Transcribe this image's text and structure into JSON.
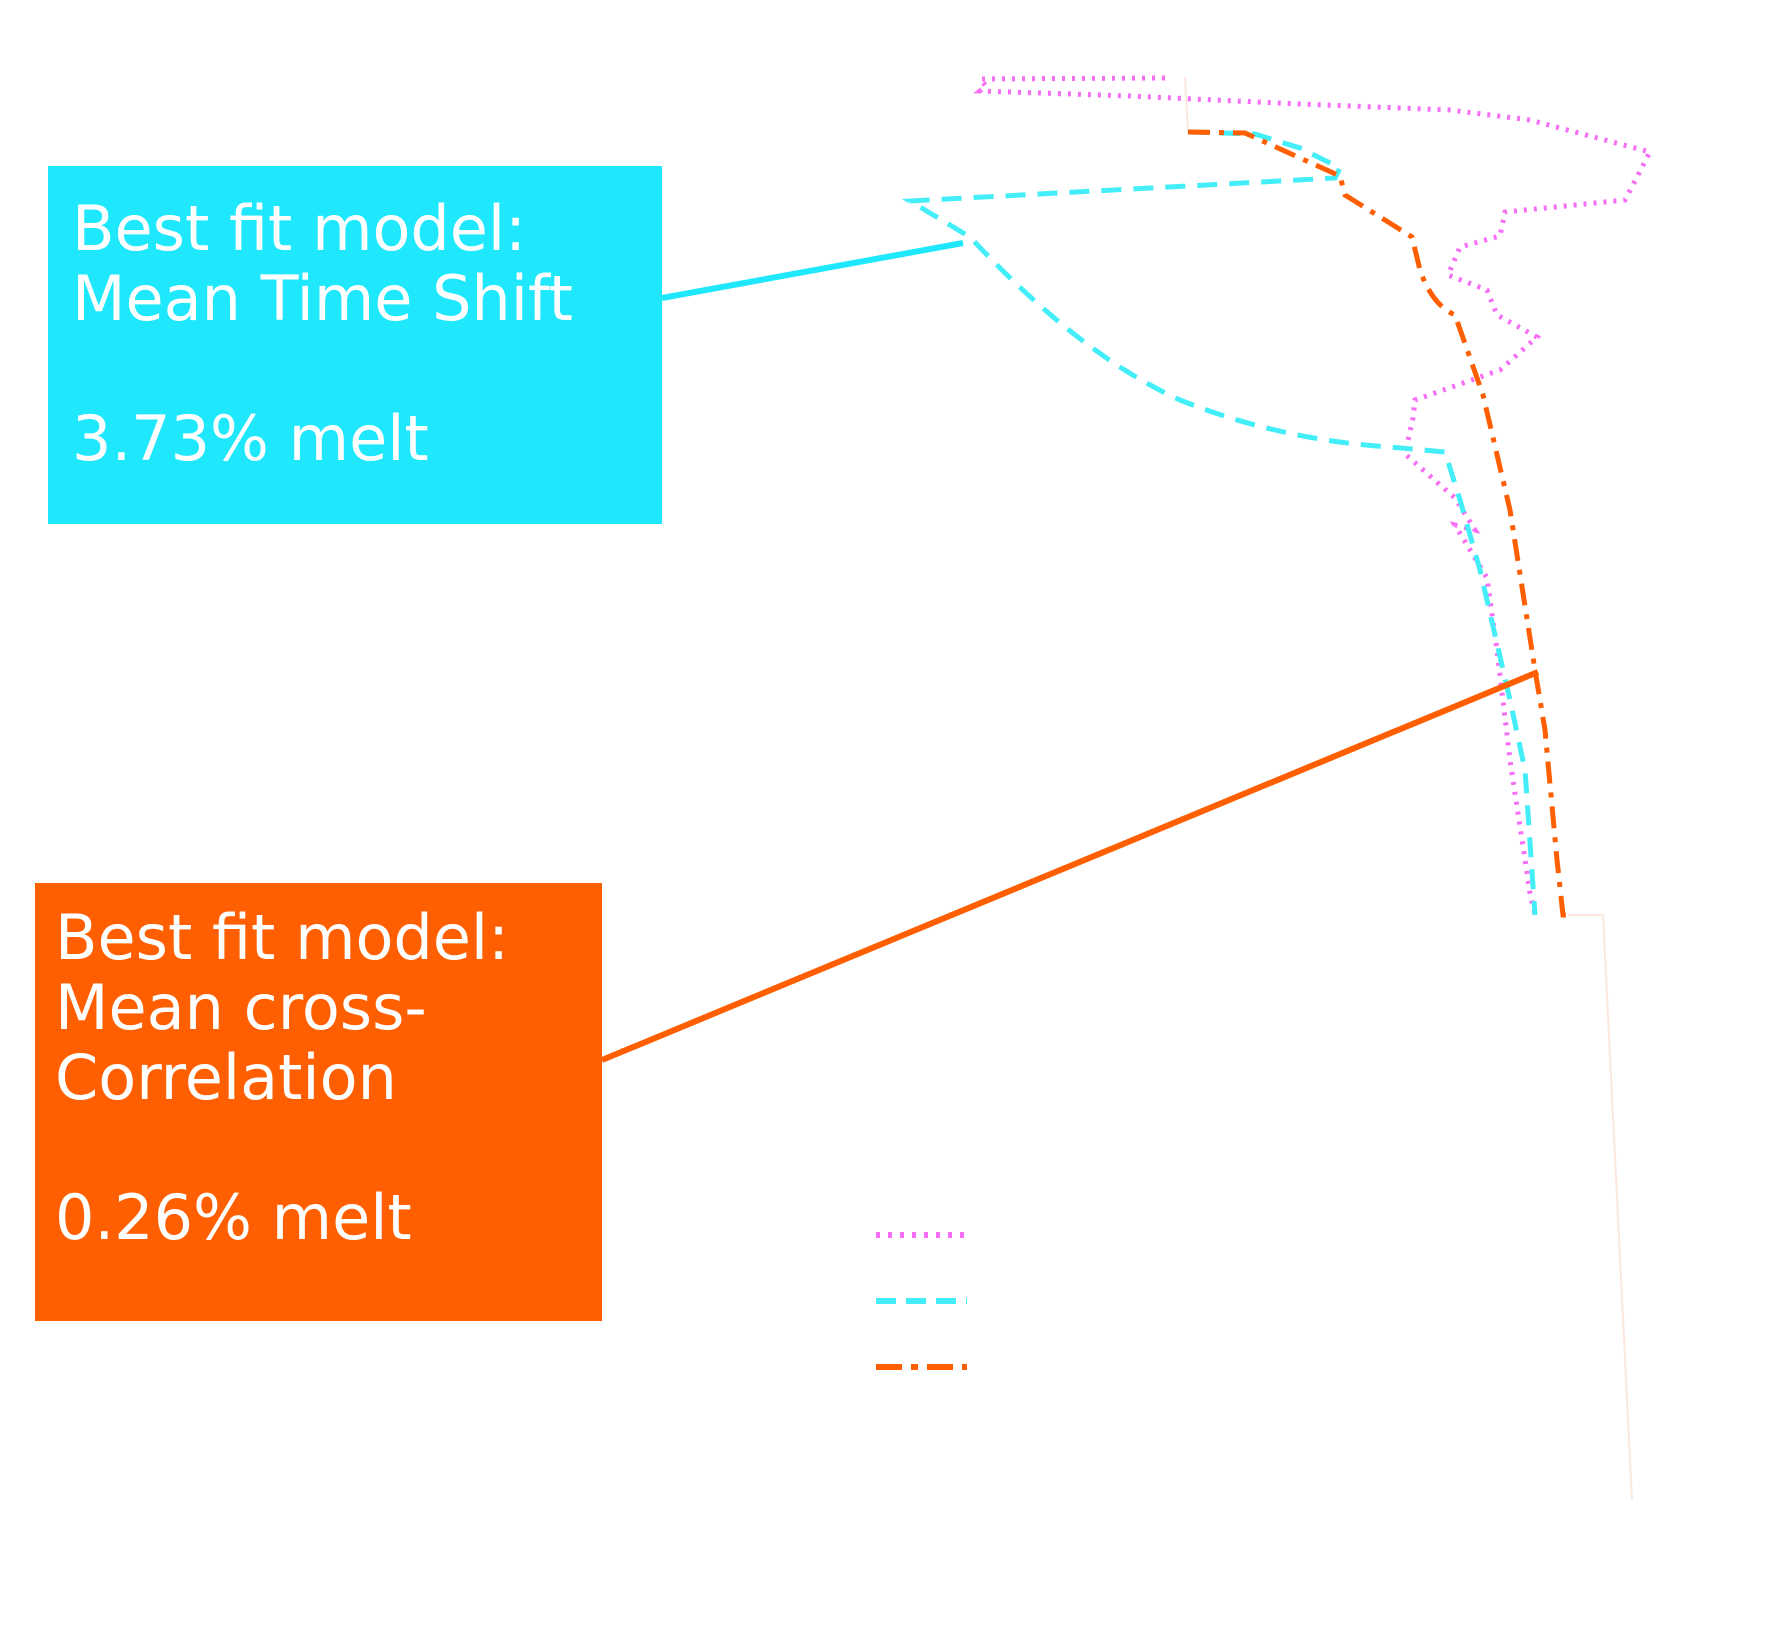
{
  "colors": {
    "background": "#ffffff",
    "magenta": "#f66ef6",
    "cyan": "#44eef8",
    "cyan_box": "#1fe8fc",
    "orange": "#ff5f00"
  },
  "annotations": {
    "cyan": {
      "title_line1": "Best fit model:",
      "title_line2": "Mean Time Shift",
      "value": "3.73% melt"
    },
    "orange": {
      "title_line1": "Best fit model:",
      "title_line2": "Mean cross-",
      "title_line3": "Correlation",
      "value": "0.26% melt"
    }
  },
  "legend": [
    {
      "style": "dotted",
      "color_key": "magenta"
    },
    {
      "style": "dashed",
      "color_key": "cyan"
    },
    {
      "style": "dash-dot",
      "color_key": "orange"
    }
  ]
}
